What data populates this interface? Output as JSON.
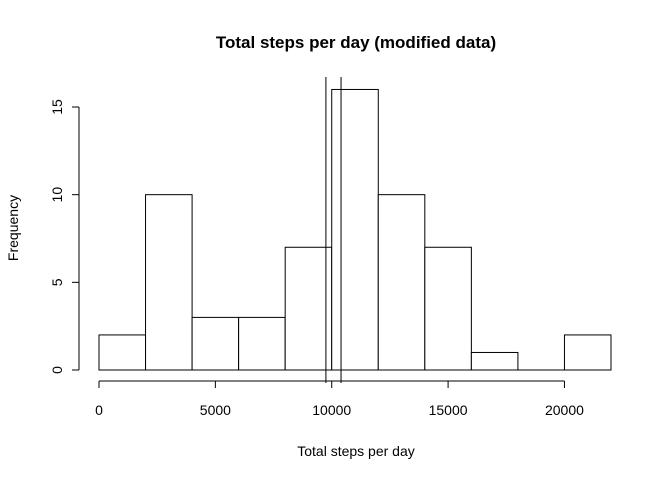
{
  "chart_data": {
    "type": "bar",
    "title": "Total steps per day (modified data)",
    "xlabel": "Total steps per day",
    "ylabel": "Frequency",
    "bins": [
      {
        "from": 0,
        "to": 2000,
        "count": 2
      },
      {
        "from": 2000,
        "to": 4000,
        "count": 10
      },
      {
        "from": 4000,
        "to": 6000,
        "count": 3
      },
      {
        "from": 6000,
        "to": 8000,
        "count": 3
      },
      {
        "from": 8000,
        "to": 10000,
        "count": 7
      },
      {
        "from": 10000,
        "to": 12000,
        "count": 16
      },
      {
        "from": 12000,
        "to": 14000,
        "count": 10
      },
      {
        "from": 14000,
        "to": 16000,
        "count": 7
      },
      {
        "from": 16000,
        "to": 18000,
        "count": 1
      },
      {
        "from": 18000,
        "to": 20000,
        "count": 0
      },
      {
        "from": 20000,
        "to": 22000,
        "count": 2
      }
    ],
    "xlim": [
      0,
      22000
    ],
    "ylim": [
      0,
      16
    ],
    "x_ticks": [
      0,
      5000,
      10000,
      15000,
      20000
    ],
    "y_ticks": [
      0,
      5,
      10,
      15
    ],
    "reference_lines_x": [
      9750,
      10400
    ],
    "grid": false,
    "legend": "none"
  }
}
